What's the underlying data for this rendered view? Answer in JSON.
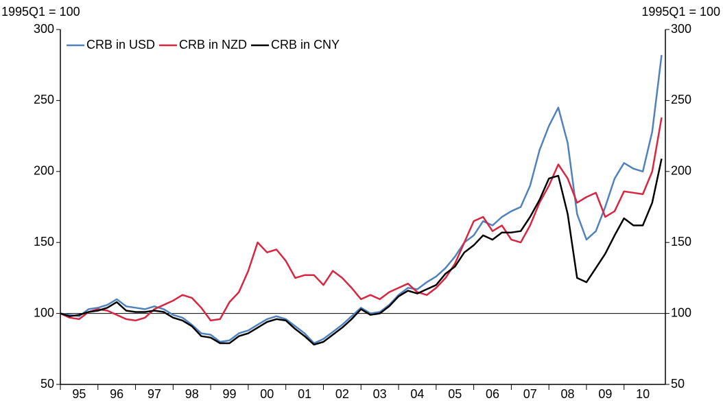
{
  "chart_data": {
    "type": "line",
    "y_label": "1995Q1 = 100",
    "y2_label": "1995Q1 = 100",
    "x": [
      1995,
      1995.25,
      1995.5,
      1995.75,
      1996,
      1996.25,
      1996.5,
      1996.75,
      1997,
      1997.25,
      1997.5,
      1997.75,
      1998,
      1998.25,
      1998.5,
      1998.75,
      1999,
      1999.25,
      1999.5,
      1999.75,
      2000,
      2000.25,
      2000.5,
      2000.75,
      2001,
      2001.25,
      2001.5,
      2001.75,
      2002,
      2002.25,
      2002.5,
      2002.75,
      2003,
      2003.25,
      2003.5,
      2003.75,
      2004,
      2004.25,
      2004.5,
      2004.75,
      2005,
      2005.25,
      2005.5,
      2005.75,
      2006,
      2006.25,
      2006.5,
      2006.75,
      2007,
      2007.25,
      2007.5,
      2007.75,
      2008,
      2008.25,
      2008.5,
      2008.75,
      2009,
      2009.25,
      2009.5,
      2009.75,
      2010,
      2010.25,
      2010.5,
      2010.75,
      2011
    ],
    "series": [
      {
        "name": "CRB in USD",
        "color": "#4f81bd",
        "values": [
          100,
          99,
          98,
          103,
          104,
          106,
          110,
          105,
          104,
          103,
          105,
          103,
          99,
          97,
          92,
          86,
          85,
          80,
          81,
          86,
          88,
          92,
          96,
          98,
          96,
          91,
          86,
          79,
          82,
          87,
          92,
          98,
          104,
          100,
          101,
          106,
          113,
          118,
          117,
          122,
          126,
          132,
          140,
          150,
          155,
          165,
          162,
          168,
          172,
          175,
          190,
          215,
          232,
          245,
          220,
          170,
          152,
          158,
          175,
          195,
          206,
          202,
          200,
          228,
          282
        ]
      },
      {
        "name": "CRB in NZD",
        "color": "#d9253f",
        "values": [
          100,
          97,
          96,
          101,
          103,
          102,
          99,
          96,
          95,
          97,
          103,
          106,
          109,
          113,
          111,
          104,
          95,
          96,
          108,
          115,
          130,
          150,
          143,
          145,
          137,
          125,
          127,
          127,
          120,
          130,
          125,
          118,
          110,
          113,
          110,
          115,
          118,
          121,
          115,
          113,
          118,
          125,
          135,
          150,
          165,
          168,
          158,
          162,
          152,
          150,
          162,
          178,
          190,
          205,
          195,
          178,
          182,
          185,
          168,
          172,
          186,
          185,
          184,
          200,
          238
        ]
      },
      {
        "name": "CRB in CNY",
        "color": "#000000",
        "values": [
          100,
          98,
          99,
          101,
          102,
          104,
          108,
          102,
          101,
          101,
          102,
          101,
          97,
          95,
          91,
          84,
          83,
          79,
          79,
          84,
          86,
          90,
          94,
          96,
          95,
          89,
          84,
          78,
          80,
          85,
          90,
          96,
          103,
          99,
          100,
          105,
          112,
          116,
          114,
          117,
          120,
          128,
          133,
          143,
          148,
          155,
          152,
          157,
          157,
          158,
          168,
          180,
          195,
          197,
          170,
          125,
          122,
          132,
          142,
          155,
          167,
          162,
          162,
          178,
          209
        ]
      }
    ],
    "hline": 100,
    "xlim": [
      1995,
      2011.1
    ],
    "xticks": [
      {
        "value": 1995,
        "label": "95"
      },
      {
        "value": 1996,
        "label": "96"
      },
      {
        "value": 1997,
        "label": "97"
      },
      {
        "value": 1998,
        "label": "98"
      },
      {
        "value": 1999,
        "label": "99"
      },
      {
        "value": 2000,
        "label": "00"
      },
      {
        "value": 2001,
        "label": "01"
      },
      {
        "value": 2002,
        "label": "02"
      },
      {
        "value": 2003,
        "label": "03"
      },
      {
        "value": 2004,
        "label": "04"
      },
      {
        "value": 2005,
        "label": "05"
      },
      {
        "value": 2006,
        "label": "06"
      },
      {
        "value": 2007,
        "label": "07"
      },
      {
        "value": 2008,
        "label": "08"
      },
      {
        "value": 2009,
        "label": "09"
      },
      {
        "value": 2010,
        "label": "10"
      }
    ],
    "ylim": [
      50,
      300
    ],
    "yticks": [
      50,
      100,
      150,
      200,
      250,
      300
    ],
    "y2lim": [
      50,
      300
    ],
    "y2ticks": [
      50,
      100,
      150,
      200,
      250,
      300
    ],
    "legend": "top-left"
  }
}
